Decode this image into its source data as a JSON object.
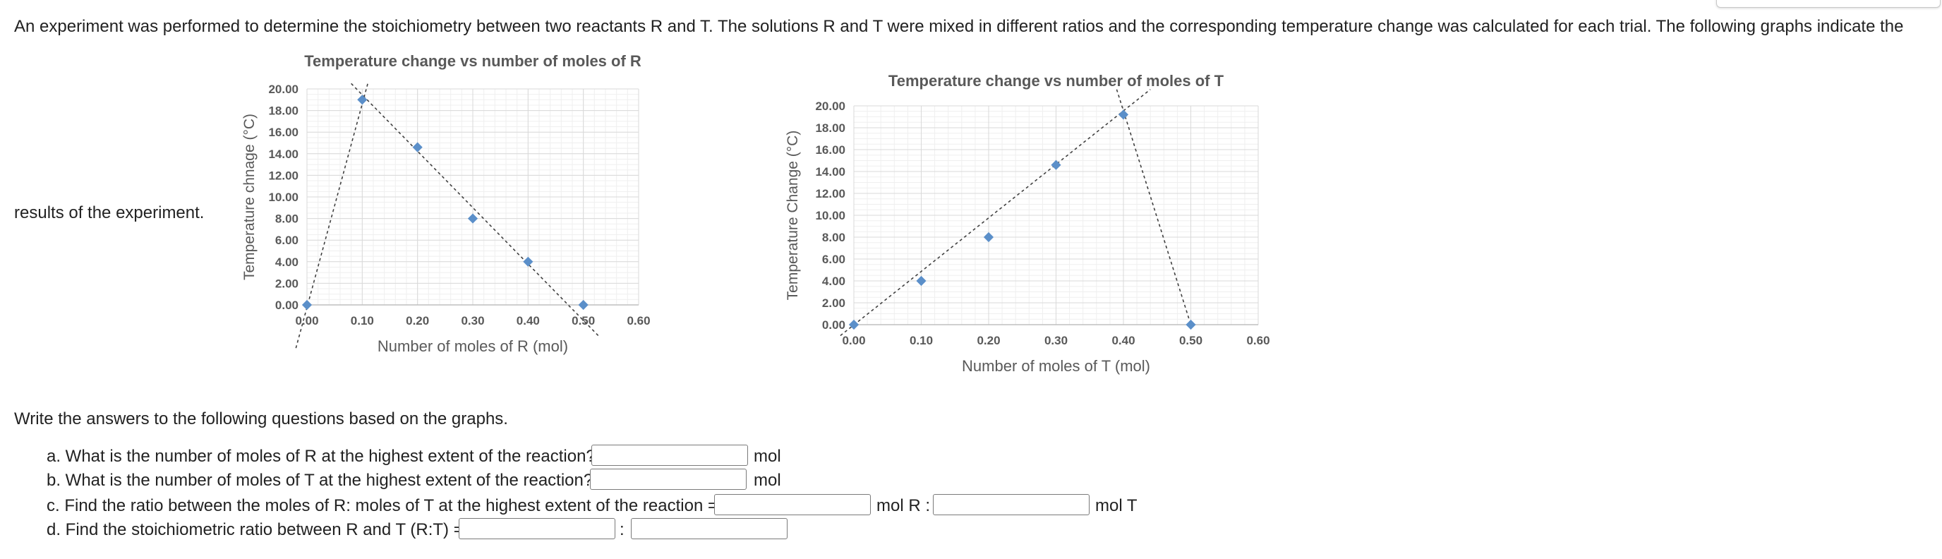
{
  "intro_text": "An experiment was performed to determine the stoichiometry between two reactants R and T. The solutions R and T were mixed in different ratios and the corresponding temperature change was calculated for each trial. The following graphs indicate the",
  "intro_text_cont": "results of the experiment.",
  "chart_data": [
    {
      "type": "scatter",
      "title": "Temperature change vs number of moles of R",
      "xlabel": "Number of moles of R (mol)",
      "ylabel": "Temperature chnage (°C)",
      "xlim": [
        0,
        0.6
      ],
      "ylim": [
        0,
        20
      ],
      "x_ticks": [
        "0.00",
        "0.10",
        "0.20",
        "0.30",
        "0.40",
        "0.50",
        "0.60"
      ],
      "y_ticks": [
        "0.00",
        "2.00",
        "4.00",
        "6.00",
        "8.00",
        "10.00",
        "12.00",
        "14.00",
        "16.00",
        "18.00",
        "20.00"
      ],
      "grid": true,
      "marker_color": "#5b8fc9",
      "series": [
        {
          "x": [
            0.0,
            0.1,
            0.2,
            0.3,
            0.4,
            0.5
          ],
          "y": [
            0.0,
            19.0,
            14.6,
            8.0,
            4.0,
            0.0
          ]
        }
      ],
      "trendlines": [
        {
          "x": [
            -0.02,
            0.11
          ],
          "y": [
            -4.0,
            20.5
          ]
        },
        {
          "x": [
            0.08,
            0.53
          ],
          "y": [
            20.5,
            -3.0
          ]
        }
      ]
    },
    {
      "type": "scatter",
      "title": "Temperature change vs number of moles of T",
      "xlabel": "Number of moles of T (mol)",
      "ylabel": "Temperature Change (°C)",
      "xlim": [
        0,
        0.6
      ],
      "ylim": [
        0,
        20
      ],
      "x_ticks": [
        "0.00",
        "0.10",
        "0.20",
        "0.30",
        "0.40",
        "0.50",
        "0.60"
      ],
      "y_ticks": [
        "0.00",
        "2.00",
        "4.00",
        "6.00",
        "8.00",
        "10.00",
        "12.00",
        "14.00",
        "16.00",
        "18.00",
        "20.00"
      ],
      "grid": true,
      "marker_color": "#5b8fc9",
      "series": [
        {
          "x": [
            0.0,
            0.1,
            0.2,
            0.3,
            0.4,
            0.5
          ],
          "y": [
            0.0,
            4.0,
            8.0,
            14.6,
            19.2,
            0.0
          ]
        }
      ],
      "trendlines": [
        {
          "x": [
            -0.02,
            0.44
          ],
          "y": [
            -1.0,
            21.5
          ]
        },
        {
          "x": [
            0.39,
            0.5
          ],
          "y": [
            21.5,
            0.0
          ]
        }
      ]
    }
  ],
  "instructions": "Write the answers to the following questions based on the graphs.",
  "questions": {
    "a": {
      "text": "a. What is the number of moles of R at the highest extent of the reaction?",
      "unit": "mol",
      "value": ""
    },
    "b": {
      "text": "b. What is the number of moles of T at the highest extent of the reaction?",
      "unit": "mol",
      "value": ""
    },
    "c": {
      "text": "c. Find the ratio between the moles of R: moles of T at the highest extent of the reaction =",
      "unit1": "mol R :",
      "unit2": "mol T",
      "value1": "",
      "value2": ""
    },
    "d": {
      "text": "d. Find the stoichiometric ratio between R and T (R:T) =",
      "sep": ":",
      "value1": "",
      "value2": ""
    }
  }
}
